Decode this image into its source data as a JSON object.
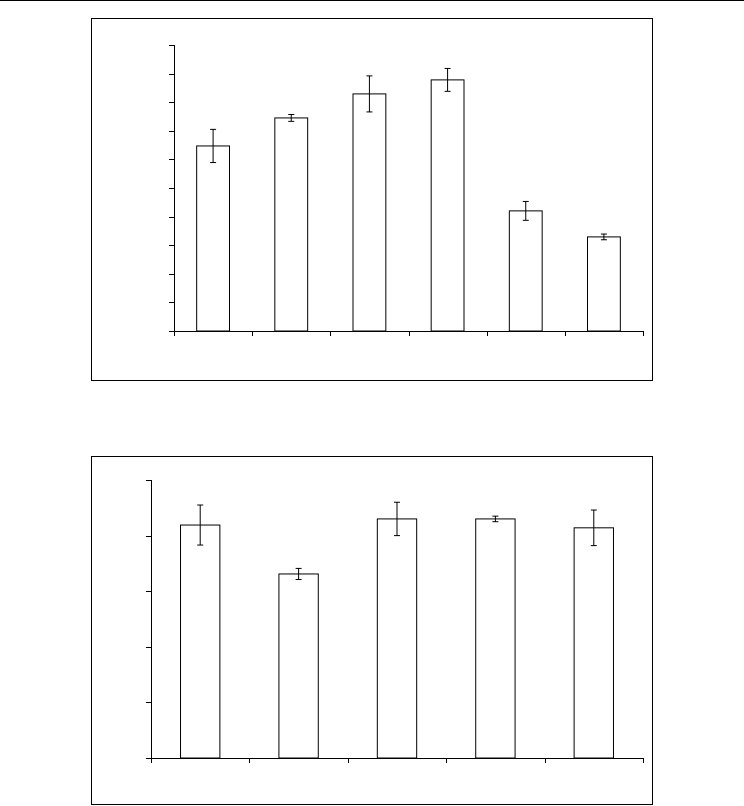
{
  "chart_data": [
    {
      "type": "bar",
      "categories": [
        null,
        null,
        null,
        null,
        null,
        null
      ],
      "values": [
        6.47,
        7.45,
        8.29,
        8.78,
        4.2,
        3.29
      ],
      "errors": [
        0.58,
        0.12,
        0.63,
        0.4,
        0.33,
        0.1
      ],
      "color": "#ffffff",
      "ylim": [
        0,
        10
      ],
      "yticks": [
        0,
        1,
        2,
        3,
        4,
        5,
        6,
        7,
        8,
        9,
        10
      ]
    },
    {
      "type": "bar",
      "categories": [
        null,
        null,
        null,
        null,
        null
      ],
      "values": [
        4.19,
        3.31,
        4.3,
        4.3,
        4.14
      ],
      "errors": [
        0.36,
        0.1,
        0.3,
        0.05,
        0.32
      ],
      "color": "#ffffff",
      "ylim": [
        0,
        5
      ],
      "yticks": [
        0,
        1,
        2,
        3,
        4,
        5
      ]
    }
  ]
}
